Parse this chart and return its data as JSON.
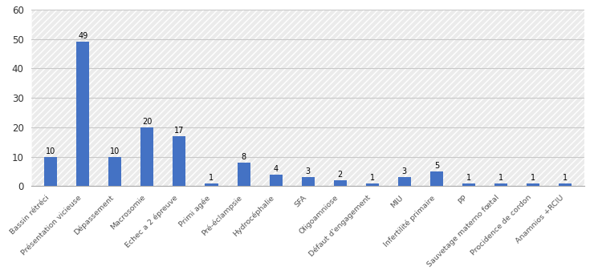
{
  "categories": [
    "Bassin rétréci",
    "Présentation vicieuse",
    "Dépassement",
    "Macrosomie",
    "Echec a 2 épreuve",
    "Primi agée",
    "Pré-éclampsie",
    "Hydrocéphalie",
    "SFA",
    "Oligoamniose",
    "Défaut d'engagement",
    "MIU",
    "Infertilité primaire",
    "PP",
    "Sauvetage materno fœtal",
    "Procidence de cordon",
    "Anamnios +RCIU"
  ],
  "values": [
    10,
    49,
    10,
    20,
    17,
    1,
    8,
    4,
    3,
    2,
    1,
    3,
    5,
    1,
    1,
    1,
    1
  ],
  "bar_color": "#4472C4",
  "ylim": [
    0,
    60
  ],
  "yticks": [
    0,
    10,
    20,
    30,
    40,
    50,
    60
  ],
  "background_color": "#ffffff",
  "grid_color": "#c8c8c8",
  "label_fontsize": 6.8,
  "value_fontsize": 7.0,
  "tick_fontsize": 8.5
}
